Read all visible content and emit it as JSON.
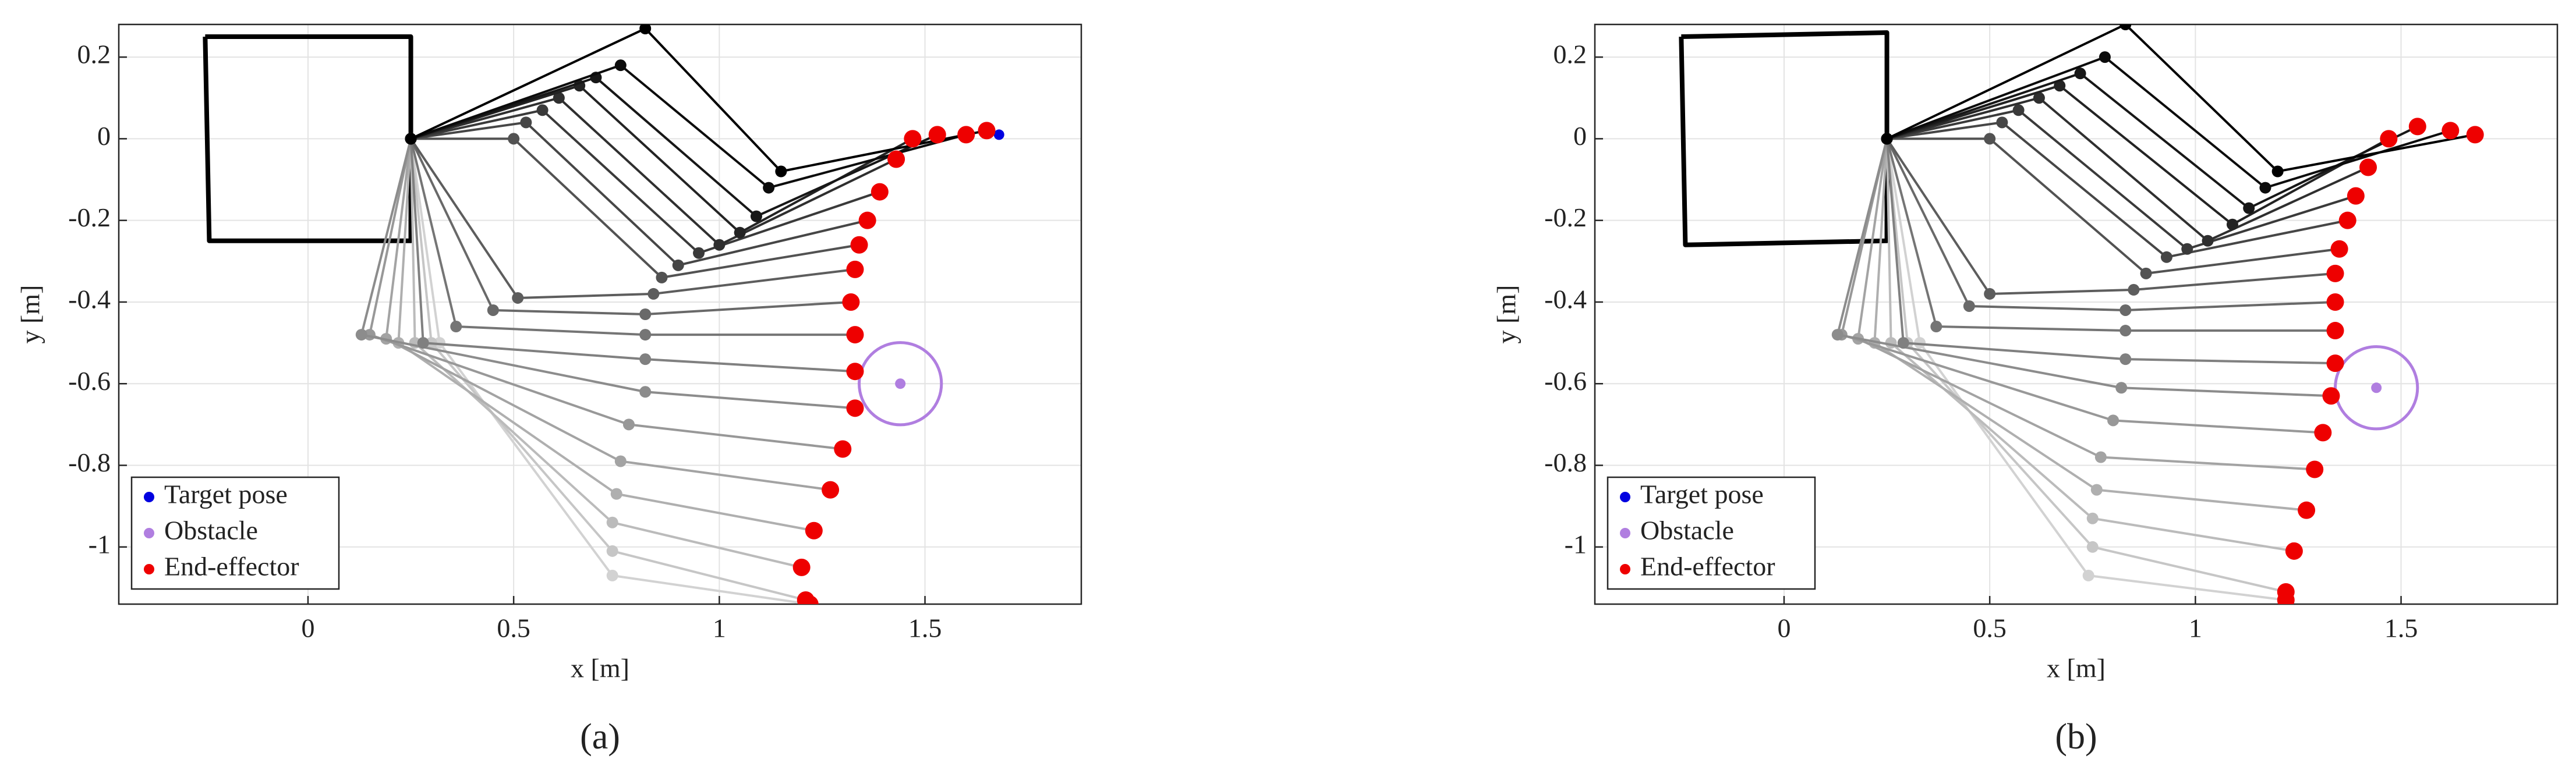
{
  "chart_data": [
    {
      "type": "line",
      "caption": "(a)",
      "xlabel": "x [m]",
      "ylabel": "y [m]",
      "xlim": [
        -0.46,
        1.88
      ],
      "ylim": [
        -1.14,
        0.28
      ],
      "xticks": [
        0,
        0.5,
        1,
        1.5
      ],
      "yticks": [
        -1,
        -0.8,
        -0.6,
        -0.4,
        -0.2,
        0,
        0.2
      ],
      "grid": true,
      "legend": "lower left",
      "arm_color_range": [
        "#d2d2d2",
        "#000000"
      ],
      "base": {
        "color": "#000000",
        "x": [
          -0.25,
          0.25,
          0.25,
          -0.24,
          -0.25
        ],
        "y": [
          0.25,
          0.25,
          -0.25,
          -0.25,
          0.25
        ]
      },
      "arms": [
        {
          "x": [
            0.25,
            0.32,
            0.74
          ],
          "y": [
            0,
            -0.5,
            -1.07
          ]
        },
        {
          "x": [
            0.25,
            0.3,
            0.74
          ],
          "y": [
            0,
            -0.5,
            -1.01
          ]
        },
        {
          "x": [
            0.25,
            0.26,
            0.74
          ],
          "y": [
            0,
            -0.5,
            -0.94
          ]
        },
        {
          "x": [
            0.25,
            0.22,
            0.75
          ],
          "y": [
            0,
            -0.5,
            -0.87
          ]
        },
        {
          "x": [
            0.25,
            0.19,
            0.76
          ],
          "y": [
            0,
            -0.49,
            -0.79
          ]
        },
        {
          "x": [
            0.25,
            0.15,
            0.78
          ],
          "y": [
            0,
            -0.48,
            -0.7
          ]
        },
        {
          "x": [
            0.25,
            0.13,
            0.82
          ],
          "y": [
            0,
            -0.48,
            -0.62
          ]
        },
        {
          "x": [
            0.25,
            0.28,
            0.82
          ],
          "y": [
            0,
            -0.5,
            -0.54
          ]
        },
        {
          "x": [
            0.25,
            0.36,
            0.82
          ],
          "y": [
            0,
            -0.46,
            -0.48
          ]
        },
        {
          "x": [
            0.25,
            0.45,
            0.82
          ],
          "y": [
            0,
            -0.42,
            -0.43
          ]
        },
        {
          "x": [
            0.25,
            0.51,
            0.84
          ],
          "y": [
            0,
            -0.39,
            -0.38
          ]
        },
        {
          "x": [
            0.25,
            0.5,
            0.86
          ],
          "y": [
            0,
            0.0,
            -0.34
          ]
        },
        {
          "x": [
            0.25,
            0.53,
            0.9
          ],
          "y": [
            0,
            0.04,
            -0.31
          ]
        },
        {
          "x": [
            0.25,
            0.57,
            0.95
          ],
          "y": [
            0,
            0.07,
            -0.28
          ]
        },
        {
          "x": [
            0.25,
            0.61,
            1.0
          ],
          "y": [
            0,
            0.1,
            -0.26
          ]
        },
        {
          "x": [
            0.25,
            0.66,
            1.05
          ],
          "y": [
            0,
            0.13,
            -0.23
          ]
        },
        {
          "x": [
            0.25,
            0.7,
            1.09
          ],
          "y": [
            0,
            0.15,
            -0.19
          ]
        },
        {
          "x": [
            0.25,
            0.76,
            1.12
          ],
          "y": [
            0,
            0.18,
            -0.12
          ]
        },
        {
          "x": [
            0.25,
            0.82,
            1.15
          ],
          "y": [
            0,
            0.27,
            -0.08
          ]
        }
      ],
      "series": [
        {
          "name": "Target pose",
          "color": "#0000e0",
          "x": [
            1.68
          ],
          "y": [
            0.01
          ]
        },
        {
          "name": "Obstacle",
          "color": "#b07ee0",
          "x": [
            1.44
          ],
          "y": [
            -0.6
          ],
          "radius": 0.1
        },
        {
          "name": "End-effector",
          "color": "#ee0000",
          "x": [
            1.22,
            1.21,
            1.2,
            1.23,
            1.27,
            1.3,
            1.33,
            1.33,
            1.33,
            1.32,
            1.33,
            1.34,
            1.36,
            1.39,
            1.43,
            1.47,
            1.53,
            1.6,
            1.65
          ],
          "y": [
            -1.14,
            -1.13,
            -1.05,
            -0.96,
            -0.86,
            -0.76,
            -0.66,
            -0.57,
            -0.48,
            -0.4,
            -0.32,
            -0.26,
            -0.2,
            -0.13,
            -0.05,
            0.0,
            0.01,
            0.01,
            0.02
          ]
        }
      ]
    },
    {
      "type": "line",
      "caption": "(b)",
      "xlabel": "x [m]",
      "ylabel": "y [m]",
      "xlim": [
        -0.46,
        1.88
      ],
      "ylim": [
        -1.14,
        0.28
      ],
      "xticks": [
        0,
        0.5,
        1,
        1.5
      ],
      "yticks": [
        -1,
        -0.8,
        -0.6,
        -0.4,
        -0.2,
        0,
        0.2
      ],
      "grid": true,
      "legend": "lower left",
      "arm_color_range": [
        "#d2d2d2",
        "#000000"
      ],
      "base": {
        "color": "#000000",
        "x": [
          -0.25,
          0.25,
          0.25,
          -0.24,
          -0.25
        ],
        "y": [
          0.25,
          0.26,
          -0.25,
          -0.26,
          0.25
        ]
      },
      "arms": [
        {
          "x": [
            0.25,
            0.33,
            0.74
          ],
          "y": [
            0,
            -0.5,
            -1.07
          ]
        },
        {
          "x": [
            0.25,
            0.3,
            0.75
          ],
          "y": [
            0,
            -0.5,
            -1.0
          ]
        },
        {
          "x": [
            0.25,
            0.26,
            0.75
          ],
          "y": [
            0,
            -0.5,
            -0.93
          ]
        },
        {
          "x": [
            0.25,
            0.22,
            0.76
          ],
          "y": [
            0,
            -0.5,
            -0.86
          ]
        },
        {
          "x": [
            0.25,
            0.18,
            0.77
          ],
          "y": [
            0,
            -0.49,
            -0.78
          ]
        },
        {
          "x": [
            0.25,
            0.14,
            0.8
          ],
          "y": [
            0,
            -0.48,
            -0.69
          ]
        },
        {
          "x": [
            0.25,
            0.13,
            0.82
          ],
          "y": [
            0,
            -0.48,
            -0.61
          ]
        },
        {
          "x": [
            0.25,
            0.29,
            0.83
          ],
          "y": [
            0,
            -0.5,
            -0.54
          ]
        },
        {
          "x": [
            0.25,
            0.37,
            0.83
          ],
          "y": [
            0,
            -0.46,
            -0.47
          ]
        },
        {
          "x": [
            0.25,
            0.45,
            0.83
          ],
          "y": [
            0,
            -0.41,
            -0.42
          ]
        },
        {
          "x": [
            0.25,
            0.5,
            0.85
          ],
          "y": [
            0,
            -0.38,
            -0.37
          ]
        },
        {
          "x": [
            0.25,
            0.5,
            0.88
          ],
          "y": [
            0,
            0.0,
            -0.33
          ]
        },
        {
          "x": [
            0.25,
            0.53,
            0.93
          ],
          "y": [
            0,
            0.04,
            -0.29
          ]
        },
        {
          "x": [
            0.25,
            0.57,
            0.98
          ],
          "y": [
            0,
            0.07,
            -0.27
          ]
        },
        {
          "x": [
            0.25,
            0.62,
            1.03
          ],
          "y": [
            0,
            0.1,
            -0.25
          ]
        },
        {
          "x": [
            0.25,
            0.67,
            1.09
          ],
          "y": [
            0,
            0.13,
            -0.21
          ]
        },
        {
          "x": [
            0.25,
            0.72,
            1.13
          ],
          "y": [
            0,
            0.16,
            -0.17
          ]
        },
        {
          "x": [
            0.25,
            0.78,
            1.17
          ],
          "y": [
            0,
            0.2,
            -0.12
          ]
        },
        {
          "x": [
            0.25,
            0.83,
            1.2
          ],
          "y": [
            0,
            0.28,
            -0.08
          ]
        }
      ],
      "series": [
        {
          "name": "Target pose",
          "color": "#0000e0",
          "x": [
            1.68
          ],
          "y": [
            0.01
          ]
        },
        {
          "name": "Obstacle",
          "color": "#b07ee0",
          "x": [
            1.44
          ],
          "y": [
            -0.61
          ],
          "radius": 0.1
        },
        {
          "name": "End-effector",
          "color": "#ee0000",
          "x": [
            1.22,
            1.22,
            1.24,
            1.27,
            1.29,
            1.31,
            1.33,
            1.34,
            1.34,
            1.34,
            1.34,
            1.35,
            1.37,
            1.39,
            1.42,
            1.47,
            1.54,
            1.62,
            1.68
          ],
          "y": [
            -1.13,
            -1.11,
            -1.01,
            -0.91,
            -0.81,
            -0.72,
            -0.63,
            -0.55,
            -0.47,
            -0.4,
            -0.33,
            -0.27,
            -0.2,
            -0.14,
            -0.07,
            0.0,
            0.03,
            0.02,
            0.01
          ]
        }
      ]
    }
  ]
}
